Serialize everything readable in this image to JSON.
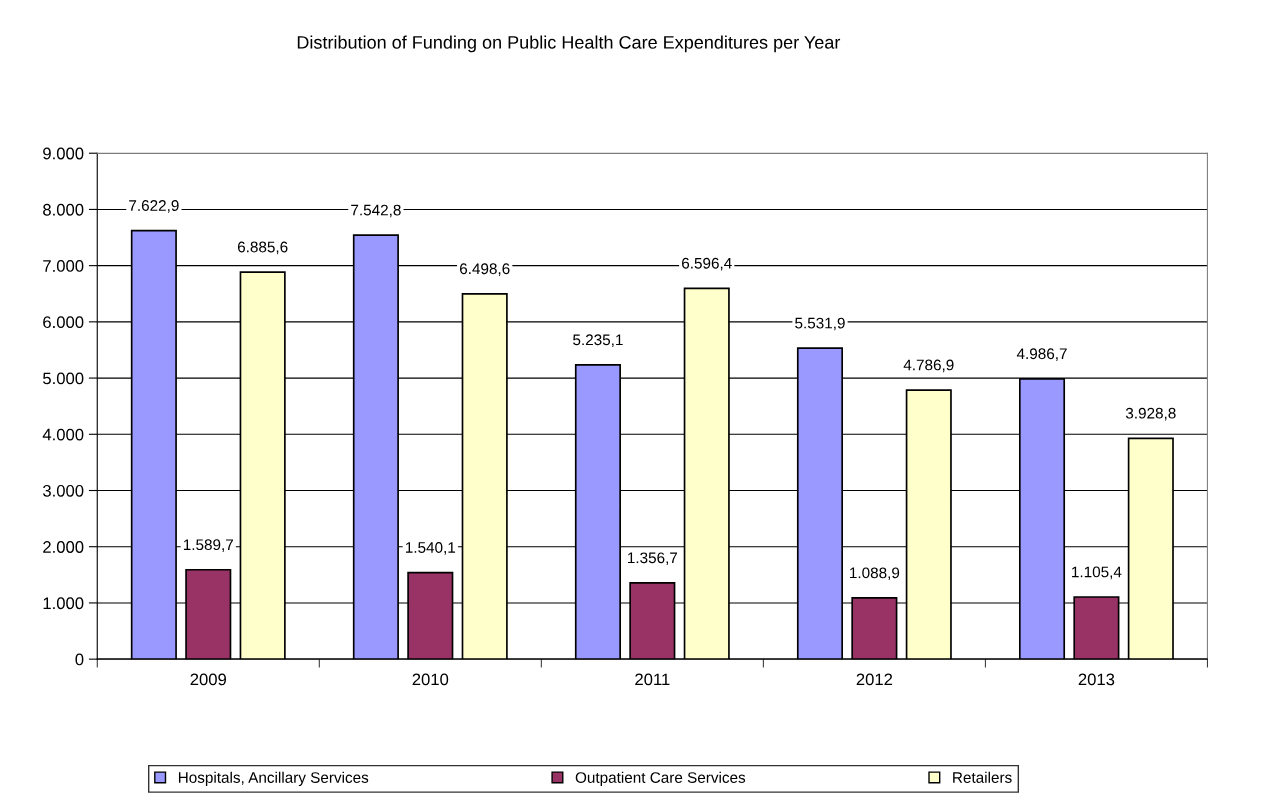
{
  "chart_data": {
    "type": "bar",
    "title": "Distribution of Funding on Public Health Care Expenditures per Year",
    "categories": [
      "2009",
      "2010",
      "2011",
      "2012",
      "2013"
    ],
    "series": [
      {
        "name": "Hospitals, Ancillary Services",
        "color": "#9999ff",
        "values": [
          7622.9,
          7542.8,
          5235.1,
          5531.9,
          4986.7
        ],
        "value_labels": [
          "7.622,9",
          "7.542,8",
          "5.235,1",
          "5.531,9",
          "4.986,7"
        ]
      },
      {
        "name": "Outpatient Care Services",
        "color": "#993366",
        "values": [
          1589.7,
          1540.1,
          1356.7,
          1088.9,
          1105.4
        ],
        "value_labels": [
          "1.589,7",
          "1.540,1",
          "1.356,7",
          "1.088,9",
          "1.105,4"
        ]
      },
      {
        "name": "Retailers",
        "color": "#ffffcc",
        "values": [
          6885.6,
          6498.6,
          6596.4,
          4786.9,
          3928.8
        ],
        "value_labels": [
          "6.885,6",
          "6.498,6",
          "6.596,4",
          "4.786,9",
          "3.928,8"
        ]
      }
    ],
    "ylim": [
      0,
      9000
    ],
    "yticks": [
      0,
      {
        "value": 1000,
        "label": "1.000"
      },
      {
        "value": 2000,
        "label": "2.000"
      },
      {
        "value": 3000,
        "label": "3.000"
      },
      {
        "value": 4000,
        "label": "4.000"
      },
      {
        "value": 5000,
        "label": "5.000"
      },
      {
        "value": 6000,
        "label": "6.000"
      },
      {
        "value": 7000,
        "label": "7.000"
      },
      {
        "value": 8000,
        "label": "8.000"
      },
      {
        "value": 9000,
        "label": "9.000"
      }
    ],
    "grid": "y",
    "legend": "bottom"
  }
}
